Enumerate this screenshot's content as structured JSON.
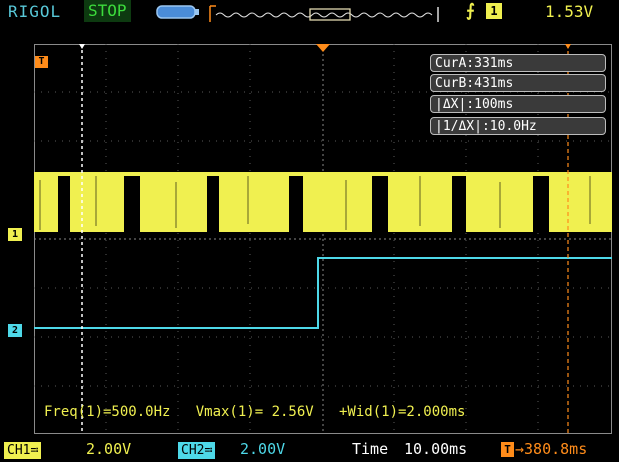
{
  "header": {
    "brand": "RIGOL",
    "run_state": "STOP",
    "trigger_source": "1",
    "trigger_level": "1.53V"
  },
  "cursors": {
    "cur_a": "CurA:331ms",
    "cur_b": "CurB:431ms",
    "delta": "|ΔX|:100ms",
    "inv_delta": "|1/ΔX|:10.0Hz"
  },
  "markers": {
    "trigger": "T",
    "ch1": "1",
    "ch2": "2"
  },
  "measurements": "Freq(1)=500.0Hz   Vmax(1)= 2.56V   +Wid(1)=2.000ms",
  "footer": {
    "ch1_badge": "CH1≕",
    "ch1_scale": "2.00V",
    "ch2_badge": "CH2≕",
    "ch2_scale": "2.00V",
    "time_label": "Time",
    "time_scale": "10.00ms",
    "offset_icon": "T",
    "offset_value": "→380.8ms"
  },
  "colors": {
    "ch1": "#f0f050",
    "ch2": "#4ed8e8",
    "trigger": "#ff8c1a",
    "status_stop": "#3cdc3c",
    "brand": "#58c8d8"
  },
  "icons": [
    "battery-icon",
    "timebase-overview-icon",
    "rising-edge-icon"
  ]
}
